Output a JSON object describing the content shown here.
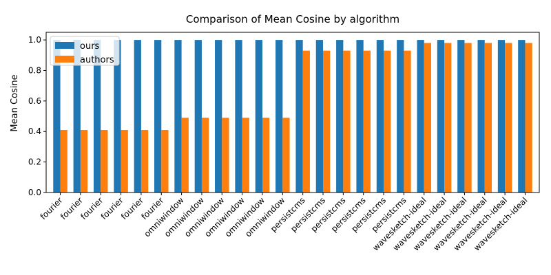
{
  "chart_data": {
    "type": "bar",
    "title": "Comparison of Mean Cosine by algorithm",
    "xlabel": "",
    "ylabel": "Mean Cosine",
    "ylim": [
      0,
      1.05
    ],
    "yticks": [
      "0.0",
      "0.2",
      "0.4",
      "0.6",
      "0.8",
      "1.0"
    ],
    "ytick_values": [
      0,
      0.2,
      0.4,
      0.6,
      0.8,
      1.0
    ],
    "grid": false,
    "legend_position": "top-left",
    "categories": [
      "fourier",
      "fourier",
      "fourier",
      "fourier",
      "fourier",
      "fourier",
      "omniwindow",
      "omniwindow",
      "omniwindow",
      "omniwindow",
      "omniwindow",
      "omniwindow",
      "persistcms",
      "persistcms",
      "persistcms",
      "persistcms",
      "persistcms",
      "persistcms",
      "wavesketch-ideal",
      "wavesketch-ideal",
      "wavesketch-ideal",
      "wavesketch-ideal",
      "wavesketch-ideal",
      "wavesketch-ideal"
    ],
    "series": [
      {
        "name": "ours",
        "color": "#1f77b4",
        "values": [
          1.0,
          1.0,
          1.0,
          1.0,
          1.0,
          1.0,
          1.0,
          1.0,
          1.0,
          1.0,
          1.0,
          1.0,
          1.0,
          1.0,
          1.0,
          1.0,
          1.0,
          1.0,
          1.0,
          1.0,
          1.0,
          1.0,
          1.0,
          1.0
        ]
      },
      {
        "name": "authors",
        "color": "#ff7f0e",
        "values": [
          0.41,
          0.41,
          0.41,
          0.41,
          0.41,
          0.41,
          0.49,
          0.49,
          0.49,
          0.49,
          0.49,
          0.49,
          0.93,
          0.93,
          0.93,
          0.93,
          0.93,
          0.93,
          0.98,
          0.98,
          0.98,
          0.98,
          0.98,
          0.98
        ]
      }
    ]
  }
}
